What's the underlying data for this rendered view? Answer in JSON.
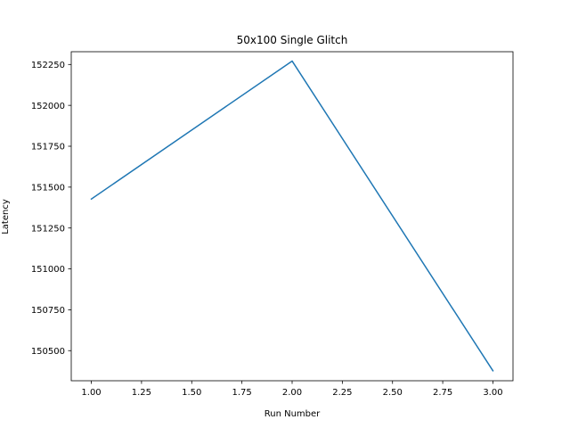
{
  "chart_data": {
    "type": "line",
    "title": "50x100 Single Glitch",
    "xlabel": "Run Number",
    "ylabel": "Latency",
    "xlim": [
      0.9,
      3.1
    ],
    "ylim": [
      150316,
      152328
    ],
    "x_ticks": [
      1.0,
      1.25,
      1.5,
      1.75,
      2.0,
      2.25,
      2.5,
      2.75,
      3.0
    ],
    "x_tick_labels": [
      "1.00",
      "1.25",
      "1.50",
      "1.75",
      "2.00",
      "2.25",
      "2.50",
      "2.75",
      "3.00"
    ],
    "y_ticks": [
      150500,
      150750,
      151000,
      151250,
      151500,
      151750,
      152000,
      152250
    ],
    "y_tick_labels": [
      "150500",
      "150750",
      "151000",
      "151250",
      "151500",
      "151750",
      "152000",
      "152250"
    ],
    "grid": false,
    "series": [
      {
        "x": [
          1,
          2,
          3
        ],
        "values": [
          151427,
          152271,
          150377
        ],
        "color": "#1f77b4"
      }
    ]
  }
}
